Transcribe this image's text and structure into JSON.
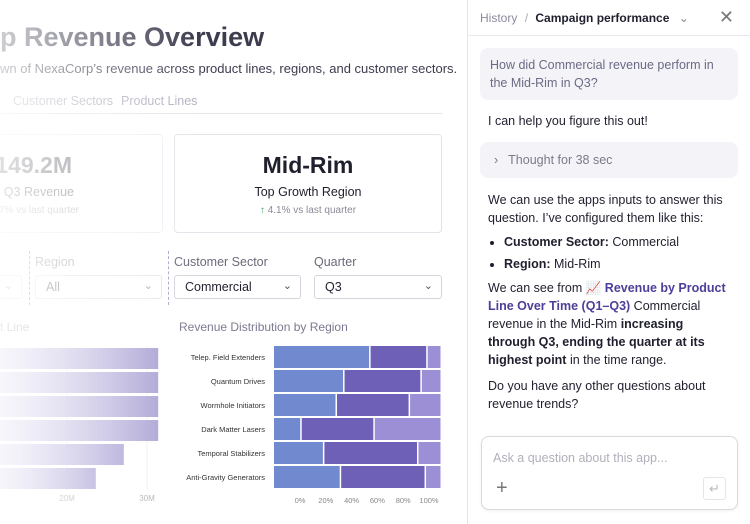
{
  "main": {
    "title": "p Revenue Overview",
    "subtitle": "wn of NexaCorp’s revenue across product lines, regions, and customer sectors.",
    "tabs": [
      {
        "label": "Customer Sectors"
      },
      {
        "label": "Product Lines"
      }
    ],
    "cards": [
      {
        "value": "149.2M",
        "label": "al Q3 Revenue",
        "change": "7% vs last quarter"
      },
      {
        "value": "Mid-Rim",
        "label": "Top Growth Region",
        "change": "4.1% vs last quarter",
        "icon": "arrow-up-icon"
      }
    ],
    "filters": [
      {
        "label": "Region",
        "value": "All"
      },
      {
        "label": "Customer Sector",
        "value": "Commercial"
      },
      {
        "label": "Quarter",
        "value": "Q3"
      }
    ]
  },
  "chart_data": [
    {
      "type": "bar",
      "orientation": "horizontal",
      "title": "t Line",
      "values": [
        31.4,
        31.4,
        31.4,
        31.4,
        27.1,
        23.6
      ],
      "unit": "M",
      "x_ticks": [
        "20M",
        "30M"
      ],
      "color": "#a59cd2"
    },
    {
      "type": "bar",
      "stacked": true,
      "orientation": "horizontal",
      "title": "Revenue Distribution by Region",
      "categories": [
        "Telep. Field Extenders",
        "Quantum Drives",
        "Wormhole Initiators",
        "Dark Matter Lasers",
        "Temporal Stabilizers",
        "Anti-Gravity Generators"
      ],
      "series": [
        {
          "values": [
            57.5,
            42,
            37.5,
            16.5,
            30,
            40
          ],
          "color": "#7089cf"
        },
        {
          "values": [
            34,
            46,
            43.5,
            43.5,
            56,
            50.5
          ],
          "color": "#6e60b6"
        },
        {
          "values": [
            8.5,
            12,
            19,
            40,
            14,
            9.5
          ],
          "color": "#9c8fd5"
        }
      ],
      "x_ticks": [
        "0%",
        "20%",
        "40%",
        "60%",
        "80%",
        "100%"
      ],
      "xlim": [
        0,
        100
      ]
    }
  ],
  "panel": {
    "breadcrumb_root": "History",
    "breadcrumb_sep": "/",
    "breadcrumb_current": "Campaign performance",
    "question": "How did Commercial revenue perform in the Mid-Rim in Q3?",
    "intro": "I can help you figure this out!",
    "thought": "Thought for 38 sec",
    "p1": "We can use the apps inputs to answer this question. I’ve configured them like this:",
    "bullets": [
      {
        "k": "Customer Sector:",
        "v": " Commercial"
      },
      {
        "k": "Region:",
        "v": " Mid-Rim"
      }
    ],
    "p2a": "We can see from ",
    "p2link": "Revenue by Product Line Over Time (Q1–Q3)",
    "p2b": " Commercial revenue in the Mid-Rim ",
    "p2bold": "increasing through Q3, ending the quarter at its highest point",
    "p2c": " in the time range.",
    "p3": "Do you have any other questions about revenue trends?",
    "placeholder": "Ask a question about this app..."
  }
}
